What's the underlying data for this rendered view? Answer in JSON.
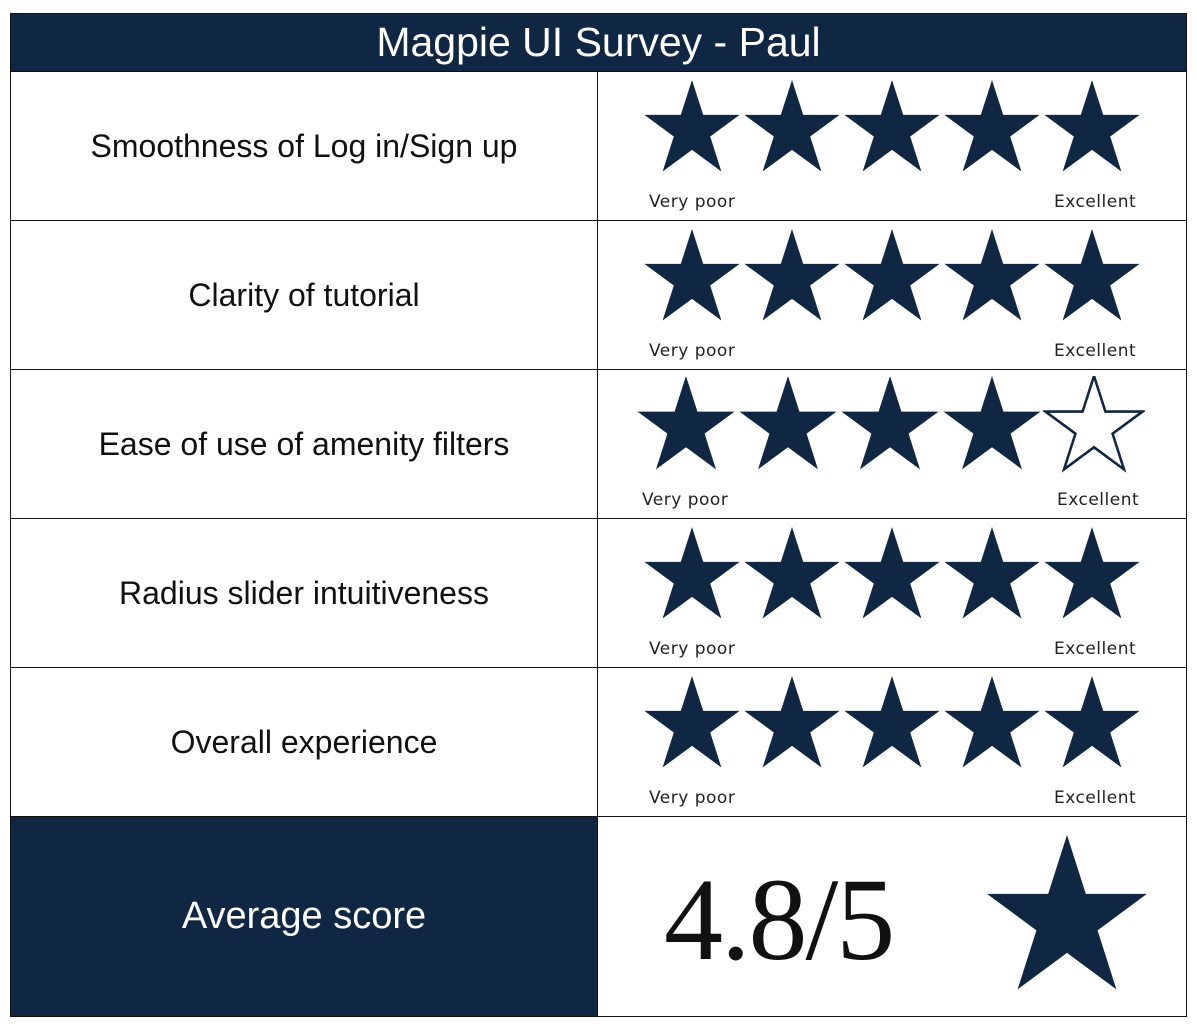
{
  "title": "Magpie UI Survey - Paul",
  "scale": {
    "low_label": "Very  poor",
    "high_label": "Excellent",
    "max_stars": 5
  },
  "questions": [
    {
      "label": "Smoothness of Log in/Sign up",
      "rating": 5
    },
    {
      "label": "Clarity of tutorial",
      "rating": 5
    },
    {
      "label": "Ease of use of amenity filters",
      "rating": 4
    },
    {
      "label": "Radius slider intuitiveness",
      "rating": 5
    },
    {
      "label": "Overall experience",
      "rating": 5
    }
  ],
  "average": {
    "label": "Average score",
    "value": "4.8/5"
  },
  "colors": {
    "navy": "#0f2742",
    "border": "#111111",
    "background": "#ffffff"
  },
  "icons": {
    "filled_star": "star-filled-icon",
    "empty_star": "star-empty-icon"
  }
}
